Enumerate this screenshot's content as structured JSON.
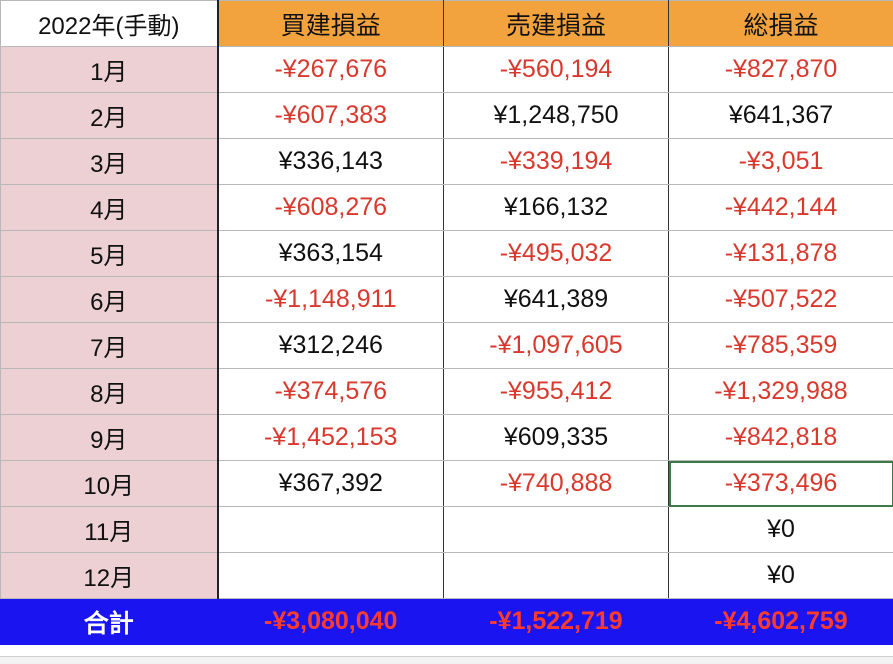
{
  "header": {
    "corner": "2022年(手動)",
    "columns": [
      "買建損益",
      "売建損益",
      "総損益"
    ]
  },
  "rows": [
    {
      "month": "1月",
      "cells": [
        {
          "text": "-¥267,676",
          "negative": true
        },
        {
          "text": "-¥560,194",
          "negative": true
        },
        {
          "text": "-¥827,870",
          "negative": true
        }
      ]
    },
    {
      "month": "2月",
      "cells": [
        {
          "text": "-¥607,383",
          "negative": true
        },
        {
          "text": "¥1,248,750",
          "negative": false
        },
        {
          "text": "¥641,367",
          "negative": false
        }
      ]
    },
    {
      "month": "3月",
      "cells": [
        {
          "text": "¥336,143",
          "negative": false
        },
        {
          "text": "-¥339,194",
          "negative": true
        },
        {
          "text": "-¥3,051",
          "negative": true
        }
      ]
    },
    {
      "month": "4月",
      "cells": [
        {
          "text": "-¥608,276",
          "negative": true
        },
        {
          "text": "¥166,132",
          "negative": false
        },
        {
          "text": "-¥442,144",
          "negative": true
        }
      ]
    },
    {
      "month": "5月",
      "cells": [
        {
          "text": "¥363,154",
          "negative": false
        },
        {
          "text": "-¥495,032",
          "negative": true
        },
        {
          "text": "-¥131,878",
          "negative": true
        }
      ]
    },
    {
      "month": "6月",
      "cells": [
        {
          "text": "-¥1,148,911",
          "negative": true
        },
        {
          "text": "¥641,389",
          "negative": false
        },
        {
          "text": "-¥507,522",
          "negative": true
        }
      ]
    },
    {
      "month": "7月",
      "cells": [
        {
          "text": "¥312,246",
          "negative": false
        },
        {
          "text": "-¥1,097,605",
          "negative": true
        },
        {
          "text": "-¥785,359",
          "negative": true
        }
      ]
    },
    {
      "month": "8月",
      "cells": [
        {
          "text": "-¥374,576",
          "negative": true
        },
        {
          "text": "-¥955,412",
          "negative": true
        },
        {
          "text": "-¥1,329,988",
          "negative": true
        }
      ]
    },
    {
      "month": "9月",
      "cells": [
        {
          "text": "-¥1,452,153",
          "negative": true
        },
        {
          "text": "¥609,335",
          "negative": false
        },
        {
          "text": "-¥842,818",
          "negative": true
        }
      ]
    },
    {
      "month": "10月",
      "cells": [
        {
          "text": "¥367,392",
          "negative": false
        },
        {
          "text": "-¥740,888",
          "negative": true
        },
        {
          "text": "-¥373,496",
          "negative": true,
          "selected": true
        }
      ]
    },
    {
      "month": "11月",
      "cells": [
        {
          "text": "",
          "negative": false
        },
        {
          "text": "",
          "negative": false
        },
        {
          "text": "¥0",
          "negative": false
        }
      ]
    },
    {
      "month": "12月",
      "cells": [
        {
          "text": "",
          "negative": false
        },
        {
          "text": "",
          "negative": false
        },
        {
          "text": "¥0",
          "negative": false
        }
      ]
    }
  ],
  "total": {
    "label": "合計",
    "cells": [
      {
        "text": "-¥3,080,040",
        "negative": true
      },
      {
        "text": "-¥1,522,719",
        "negative": true
      },
      {
        "text": "-¥4,602,759",
        "negative": true
      }
    ]
  },
  "colors": {
    "header_bg": "#f2a33d",
    "month_bg": "#ecd0d3",
    "negative_text": "#d9382d",
    "total_bg": "#1a14f0",
    "selection_border": "#3c7a4a"
  }
}
